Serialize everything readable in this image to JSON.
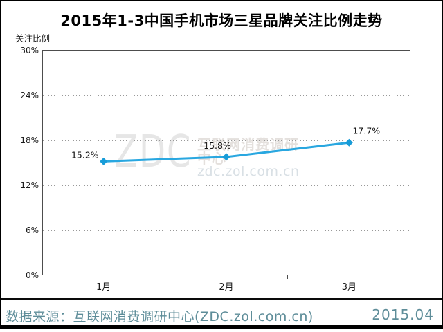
{
  "chart_data": {
    "type": "line",
    "title": "2015年1-3中国手机市场三星品牌关注比例走势",
    "ylabel": "关注比例",
    "xlabel": "",
    "categories": [
      "1月",
      "2月",
      "3月"
    ],
    "series": [
      {
        "name": "三星",
        "values": [
          15.2,
          15.8,
          17.7
        ]
      }
    ],
    "point_labels": [
      "15.2%",
      "15.8%",
      "17.7%"
    ],
    "ylim": [
      0,
      30
    ],
    "y_tick_labels": [
      "30%",
      "24%",
      "18%",
      "12%",
      "6%",
      "0%"
    ],
    "grid": "horizontal-dotted",
    "legend": "none",
    "line_color": "#29A7E0",
    "marker_color": "#189CD8",
    "marker": "diamond",
    "plot_border_color": "#4d4d4d",
    "gridline_color": "#999999"
  },
  "watermark": {
    "logo_text": "ZDC",
    "org_text": "互联网消费调研中心",
    "url_text": "zdc.zol.com.cn"
  },
  "footer": {
    "source_text": "数据来源：互联网消费调研中心(ZDC.zol.com.cn)",
    "date_text": "2015.04",
    "text_color": "#5E8D99"
  }
}
